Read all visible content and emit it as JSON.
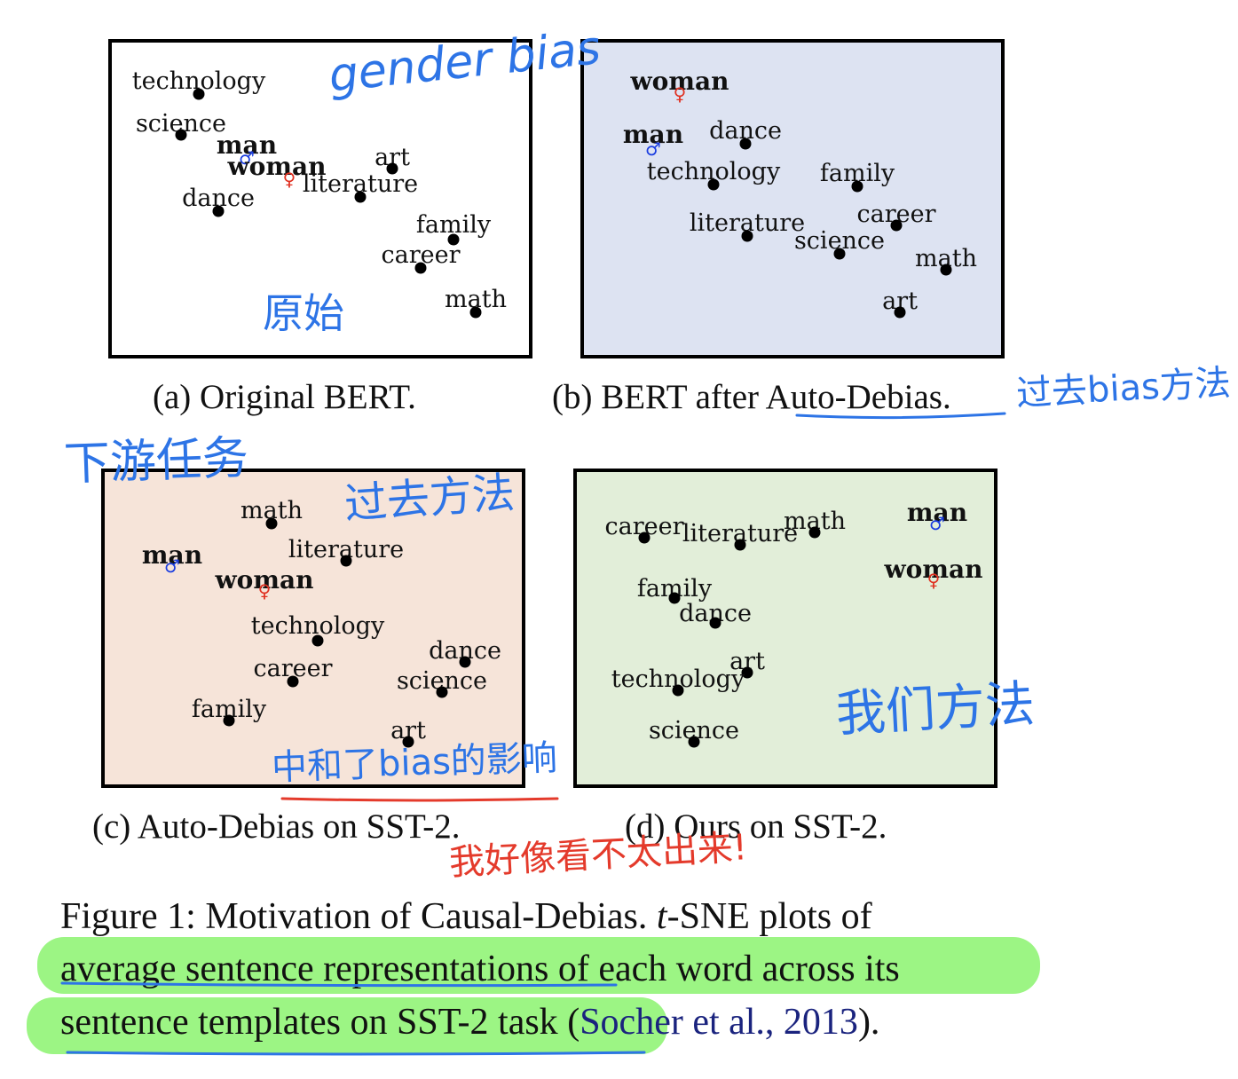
{
  "panels": [
    {
      "id": "a",
      "caption": "(a) Original BERT.",
      "bg": "#ffffff",
      "points": [
        {
          "label": "technology",
          "bold": false
        },
        {
          "label": "science",
          "bold": false
        },
        {
          "label": "man",
          "bold": true,
          "symbol": "♂"
        },
        {
          "label": "woman",
          "bold": true,
          "symbol": "♀"
        },
        {
          "label": "art",
          "bold": false
        },
        {
          "label": "literature",
          "bold": false
        },
        {
          "label": "dance",
          "bold": false
        },
        {
          "label": "family",
          "bold": false
        },
        {
          "label": "career",
          "bold": false
        },
        {
          "label": "math",
          "bold": false
        }
      ]
    },
    {
      "id": "b",
      "caption_prefix": "(b) BERT after ",
      "caption_link": "Auto-Debias",
      "caption_suffix": ".",
      "bg": "#dde3f2",
      "points": [
        {
          "label": "woman",
          "bold": true,
          "symbol": "♀"
        },
        {
          "label": "man",
          "bold": true,
          "symbol": "♂"
        },
        {
          "label": "dance",
          "bold": false
        },
        {
          "label": "technology",
          "bold": false
        },
        {
          "label": "family",
          "bold": false
        },
        {
          "label": "career",
          "bold": false
        },
        {
          "label": "literature",
          "bold": false
        },
        {
          "label": "science",
          "bold": false
        },
        {
          "label": "math",
          "bold": false
        },
        {
          "label": "art",
          "bold": false
        }
      ]
    },
    {
      "id": "c",
      "caption": "(c) Auto-Debias on SST-2.",
      "bg": "#f6e4d9",
      "points": [
        {
          "label": "math",
          "bold": false
        },
        {
          "label": "literature",
          "bold": false
        },
        {
          "label": "man",
          "bold": true,
          "symbol": "♂"
        },
        {
          "label": "woman",
          "bold": true,
          "symbol": "♀"
        },
        {
          "label": "technology",
          "bold": false
        },
        {
          "label": "dance",
          "bold": false
        },
        {
          "label": "career",
          "bold": false
        },
        {
          "label": "science",
          "bold": false
        },
        {
          "label": "family",
          "bold": false
        },
        {
          "label": "art",
          "bold": false
        }
      ]
    },
    {
      "id": "d",
      "caption": "(d) Ours on SST-2.",
      "bg": "#e2eed9",
      "points": [
        {
          "label": "career",
          "bold": false
        },
        {
          "label": "literature",
          "bold": false
        },
        {
          "label": "math",
          "bold": false
        },
        {
          "label": "man",
          "bold": true,
          "symbol": "♂"
        },
        {
          "label": "woman",
          "bold": true,
          "symbol": "♀"
        },
        {
          "label": "family",
          "bold": false
        },
        {
          "label": "dance",
          "bold": false
        },
        {
          "label": "art",
          "bold": false
        },
        {
          "label": "technology",
          "bold": false
        },
        {
          "label": "science",
          "bold": false
        }
      ]
    }
  ],
  "figure_caption": {
    "line1_a": "Figure 1: Motivation of Causal-Debias. ",
    "line1_italic": "t",
    "line1_b": "-SNE plots of",
    "line2_a": "average sentence representations",
    "line2_b": " of each word across its",
    "line3_a": "sentence templates on SST-2 task",
    "line3_b": " (",
    "line3_cite": "Socher et al., 2013",
    "line3_c": ")."
  },
  "annotations": {
    "gender_bias": "gender bias",
    "original": "原始",
    "past_bias_method": "过去bias方法",
    "downstream_task": "下游任务",
    "past_method": "过去方法",
    "neutralize_bias": "中和了bias的影响",
    "our_method": "我们方法",
    "not_seen": "我好像看不太出来!"
  },
  "colors": {
    "male_symbol": "#1a3de0",
    "female_symbol": "#e03020",
    "annotation_blue": "#2d74e6",
    "annotation_red": "#e43a2b",
    "highlight_green": "#9cf584",
    "citation": "#1a237e"
  }
}
